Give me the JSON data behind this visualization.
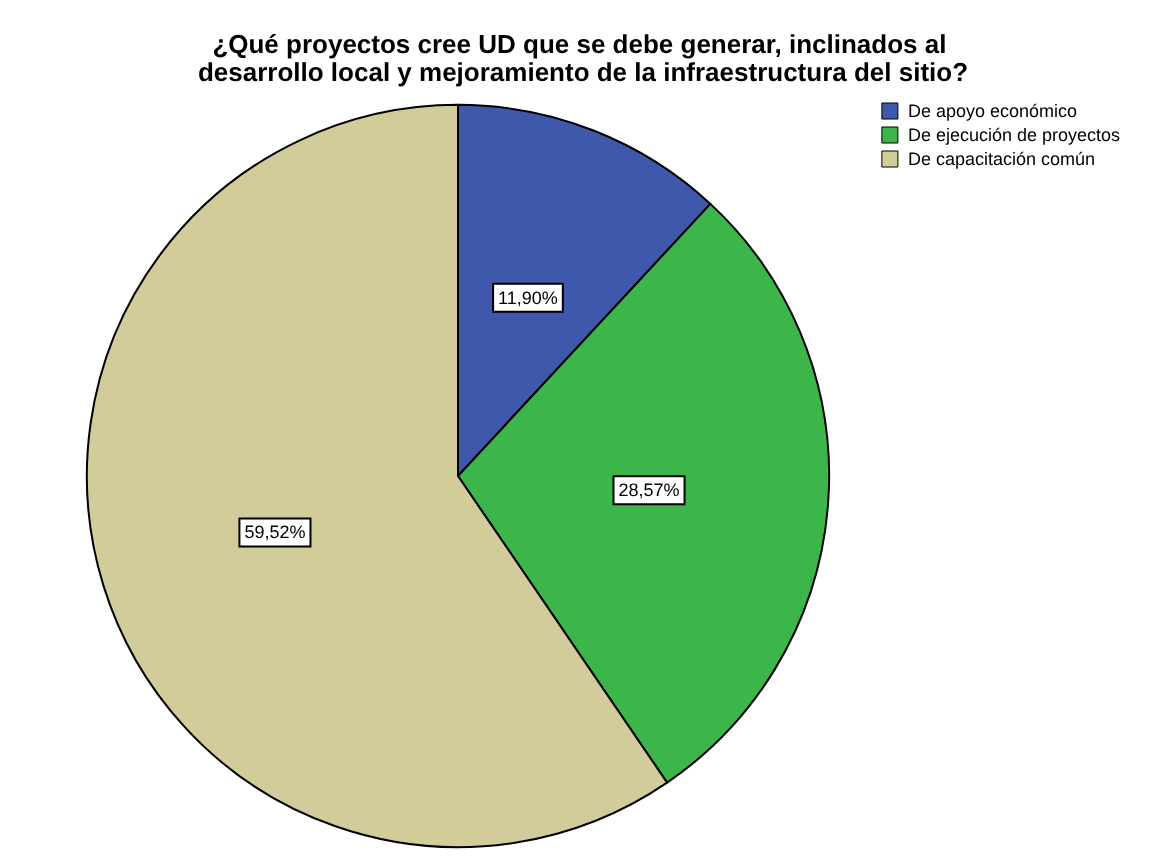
{
  "chart_data": {
    "type": "pie",
    "title": "¿Qué proyectos cree UD que se debe generar, inclinados al desarrollo local y mejoramiento de la infraestructura del sitio?",
    "categories": [
      "De apoyo económico",
      "De ejecución de proyectos",
      "De capacitación común"
    ],
    "values": [
      11.9,
      28.57,
      59.52
    ],
    "colors": [
      "#3e58ac",
      "#3cb54b",
      "#d2cc9a"
    ],
    "value_labels": [
      "11,90%",
      "28,57%",
      "59,52%"
    ],
    "legend": "top right"
  }
}
